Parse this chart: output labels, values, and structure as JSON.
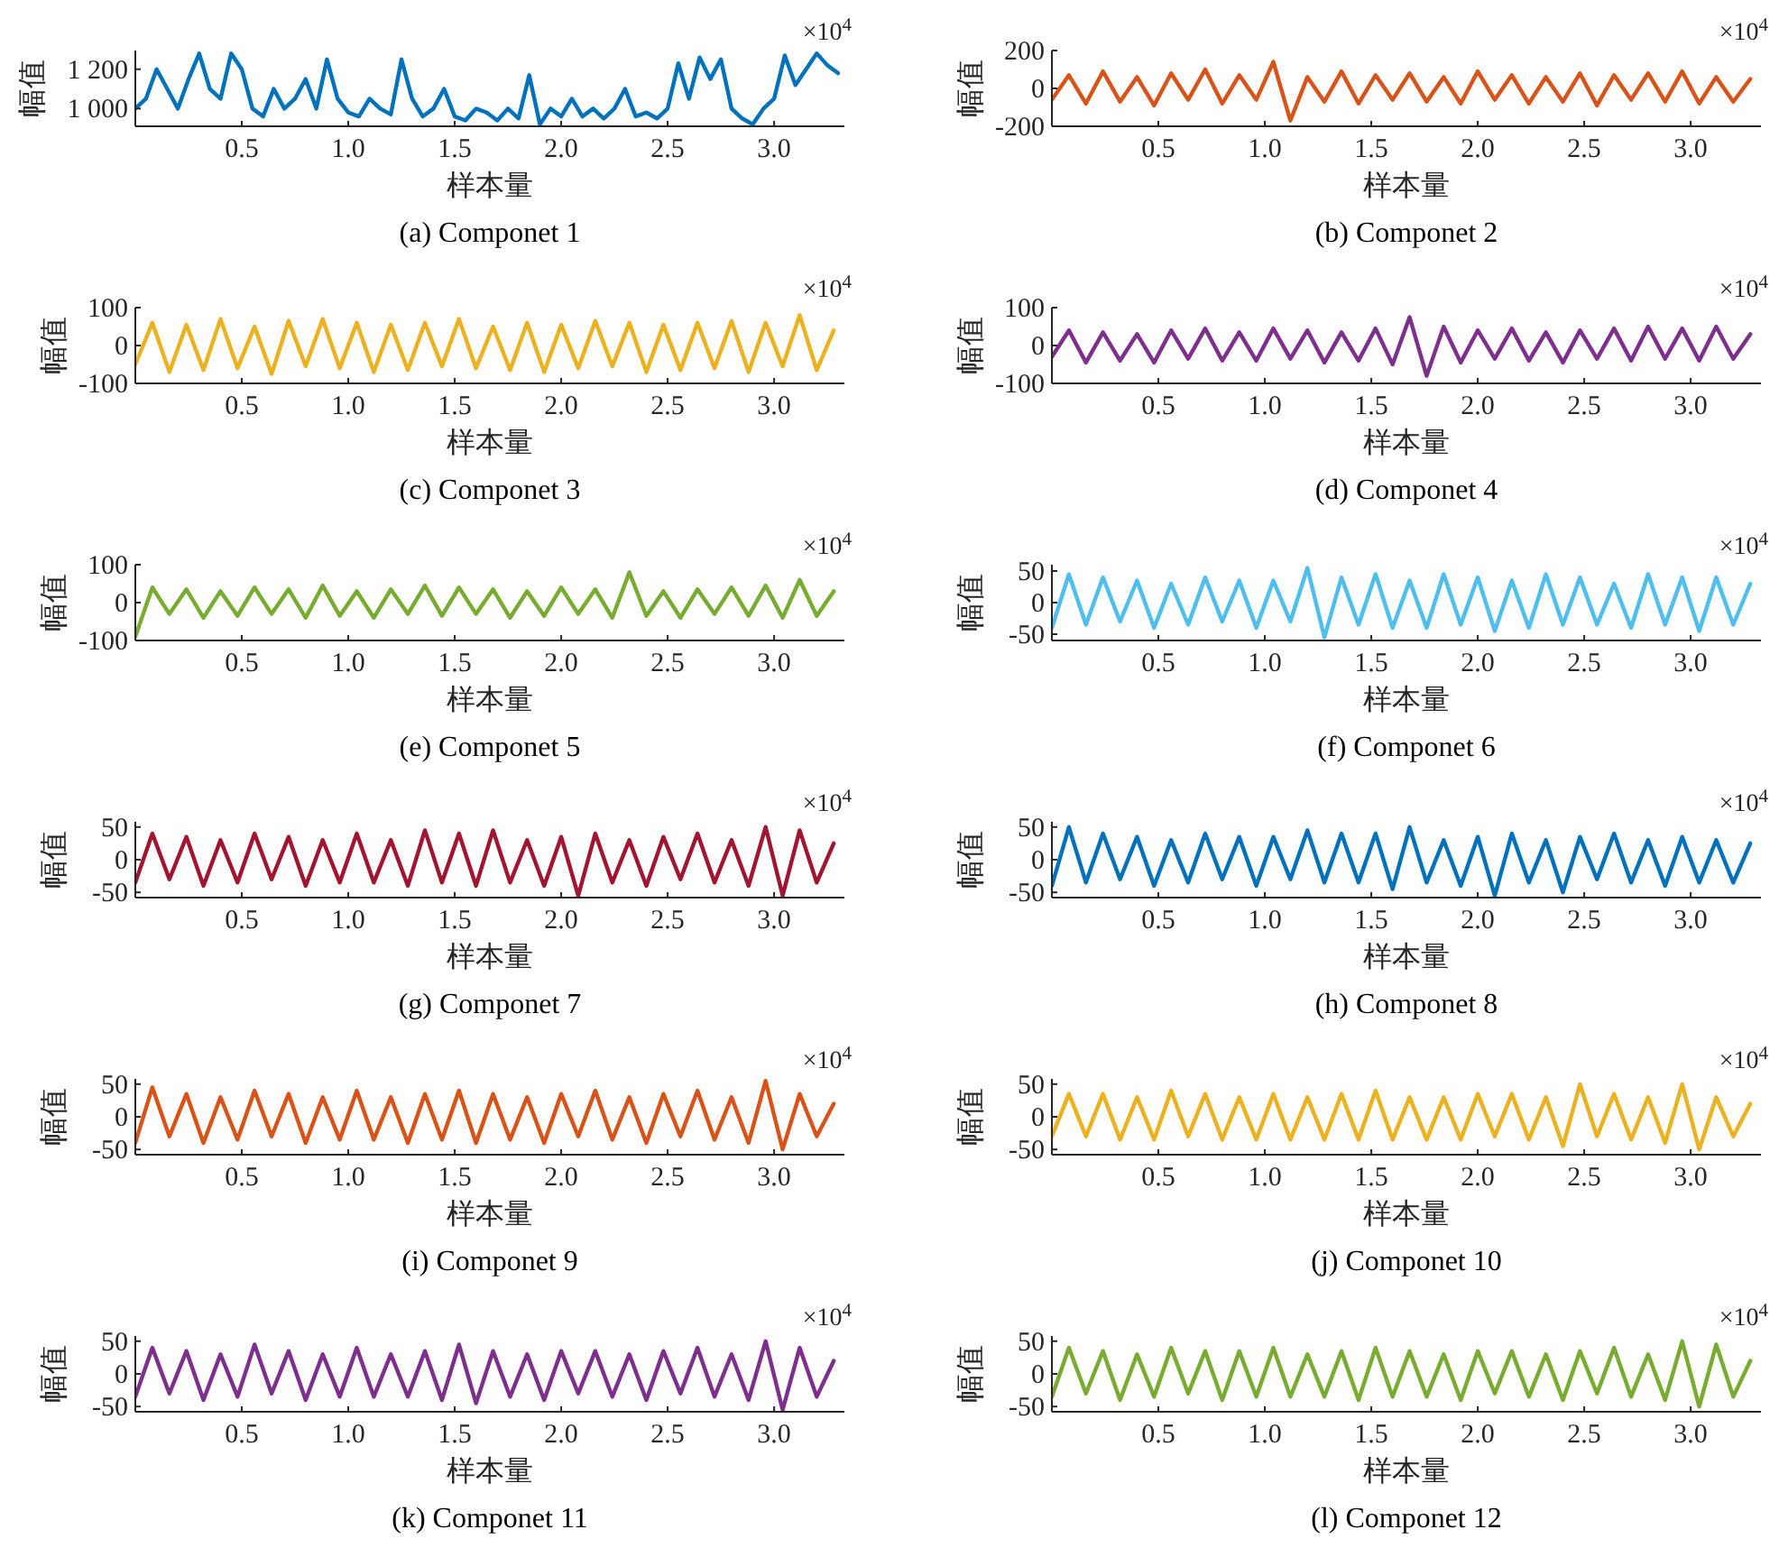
{
  "chart_data": [
    {
      "type": "line",
      "title": "(a) Componet 1",
      "xlabel": "样本量",
      "ylabel": "幅值",
      "annotations": [
        "×10$^{4}$"
      ],
      "xlim": [
        0,
        3.33
      ],
      "xticks": [
        0.5,
        {
          "value": 1,
          "label": "1.0"
        },
        1.5,
        {
          "value": 2,
          "label": "2.0"
        },
        2.5,
        {
          "value": 3,
          "label": "3.0"
        }
      ],
      "ylim": [
        910,
        1295
      ],
      "yticks": [
        {
          "value": 1000,
          "label": "1 000"
        },
        {
          "value": 1200,
          "label": "1 200"
        }
      ],
      "x": [
        0,
        0.05,
        0.1,
        0.15,
        0.2,
        0.25,
        0.3,
        0.35,
        0.4,
        0.45,
        0.5,
        0.55,
        0.6,
        0.65,
        0.7,
        0.75,
        0.8,
        0.85,
        0.9,
        0.95,
        1,
        1.05,
        1.1,
        1.15,
        1.2,
        1.25,
        1.3,
        1.35,
        1.4,
        1.45,
        1.5,
        1.55,
        1.6,
        1.65,
        1.7,
        1.75,
        1.8,
        1.85,
        1.9,
        1.95,
        2,
        2.05,
        2.1,
        2.15,
        2.2,
        2.25,
        2.3,
        2.35,
        2.4,
        2.45,
        2.5,
        2.55,
        2.6,
        2.65,
        2.7,
        2.75,
        2.8,
        2.85,
        2.9,
        2.95,
        3,
        3.05,
        3.1,
        3.15,
        3.2,
        3.25,
        3.3
      ],
      "series": [
        {
          "color": "#0072bd",
          "values": [
            1000,
            1050,
            1200,
            1100,
            1000,
            1150,
            1280,
            1100,
            1050,
            1280,
            1200,
            1000,
            960,
            1100,
            1000,
            1050,
            1150,
            1000,
            1250,
            1050,
            980,
            960,
            1050,
            1000,
            970,
            1250,
            1050,
            960,
            1000,
            1100,
            960,
            940,
            1000,
            980,
            940,
            1000,
            950,
            1170,
            920,
            1000,
            960,
            1050,
            960,
            1000,
            950,
            1000,
            1100,
            960,
            980,
            950,
            1000,
            1230,
            1050,
            1260,
            1150,
            1250,
            1000,
            950,
            920,
            1000,
            1050,
            1270,
            1120,
            1200,
            1280,
            1220,
            1180
          ]
        }
      ]
    },
    {
      "type": "line",
      "title": "(b) Componet 2",
      "xlabel": "样本量",
      "ylabel": "幅值",
      "annotations": [
        "×10$^{4}$"
      ],
      "xlim": [
        0,
        3.33
      ],
      "xticks": [
        0.5,
        {
          "value": 1,
          "label": "1.0"
        },
        1.5,
        {
          "value": 2,
          "label": "2.0"
        },
        2.5,
        {
          "value": 3,
          "label": "3.0"
        }
      ],
      "ylim": [
        -200,
        200
      ],
      "yticks": [
        -200,
        0,
        200
      ],
      "x": [
        0,
        0.08,
        0.16,
        0.24,
        0.32,
        0.4,
        0.48,
        0.56,
        0.64,
        0.72,
        0.8,
        0.88,
        0.96,
        1.04,
        1.12,
        1.2,
        1.28,
        1.36,
        1.44,
        1.52,
        1.6,
        1.68,
        1.76,
        1.84,
        1.92,
        2,
        2.08,
        2.16,
        2.24,
        2.32,
        2.4,
        2.48,
        2.56,
        2.64,
        2.72,
        2.8,
        2.88,
        2.96,
        3.04,
        3.12,
        3.2,
        3.28
      ],
      "series": [
        {
          "color": "#d95319",
          "values": [
            -60,
            70,
            -80,
            90,
            -70,
            60,
            -90,
            80,
            -60,
            100,
            -80,
            70,
            -60,
            140,
            -170,
            60,
            -70,
            90,
            -80,
            70,
            -60,
            80,
            -70,
            60,
            -80,
            90,
            -60,
            70,
            -80,
            60,
            -70,
            80,
            -90,
            70,
            -60,
            80,
            -70,
            90,
            -80,
            60,
            -70,
            50
          ]
        }
      ]
    },
    {
      "type": "line",
      "title": "(c) Componet 3",
      "xlabel": "样本量",
      "ylabel": "幅值",
      "annotations": [
        "×10$^{4}$"
      ],
      "xlim": [
        0,
        3.33
      ],
      "xticks": [
        0.5,
        {
          "value": 1,
          "label": "1.0"
        },
        1.5,
        {
          "value": 2,
          "label": "2.0"
        },
        2.5,
        {
          "value": 3,
          "label": "3.0"
        }
      ],
      "ylim": [
        -100,
        100
      ],
      "yticks": [
        -100,
        0,
        100
      ],
      "x": [
        0,
        0.08,
        0.16,
        0.24,
        0.32,
        0.4,
        0.48,
        0.56,
        0.64,
        0.72,
        0.8,
        0.88,
        0.96,
        1.04,
        1.12,
        1.2,
        1.28,
        1.36,
        1.44,
        1.52,
        1.6,
        1.68,
        1.76,
        1.84,
        1.92,
        2,
        2.08,
        2.16,
        2.24,
        2.32,
        2.4,
        2.48,
        2.56,
        2.64,
        2.72,
        2.8,
        2.88,
        2.96,
        3.04,
        3.12,
        3.2,
        3.28
      ],
      "series": [
        {
          "color": "#edb120",
          "values": [
            -50,
            60,
            -70,
            55,
            -65,
            70,
            -60,
            50,
            -75,
            65,
            -55,
            70,
            -60,
            60,
            -70,
            55,
            -65,
            60,
            -55,
            70,
            -60,
            50,
            -65,
            60,
            -70,
            55,
            -60,
            65,
            -55,
            60,
            -70,
            55,
            -65,
            60,
            -60,
            65,
            -70,
            60,
            -55,
            80,
            -65,
            40
          ]
        }
      ]
    },
    {
      "type": "line",
      "title": "(d) Componet 4",
      "xlabel": "样本量",
      "ylabel": "幅值",
      "annotations": [
        "×10$^{4}$"
      ],
      "xlim": [
        0,
        3.33
      ],
      "xticks": [
        0.5,
        {
          "value": 1,
          "label": "1.0"
        },
        1.5,
        {
          "value": 2,
          "label": "2.0"
        },
        2.5,
        {
          "value": 3,
          "label": "3.0"
        }
      ],
      "ylim": [
        -100,
        100
      ],
      "yticks": [
        -100,
        0,
        100
      ],
      "x": [
        0,
        0.08,
        0.16,
        0.24,
        0.32,
        0.4,
        0.48,
        0.56,
        0.64,
        0.72,
        0.8,
        0.88,
        0.96,
        1.04,
        1.12,
        1.2,
        1.28,
        1.36,
        1.44,
        1.52,
        1.6,
        1.68,
        1.76,
        1.84,
        1.92,
        2,
        2.08,
        2.16,
        2.24,
        2.32,
        2.4,
        2.48,
        2.56,
        2.64,
        2.72,
        2.8,
        2.88,
        2.96,
        3.04,
        3.12,
        3.2,
        3.28
      ],
      "series": [
        {
          "color": "#7e2f8e",
          "values": [
            -30,
            40,
            -45,
            35,
            -40,
            30,
            -45,
            40,
            -35,
            45,
            -40,
            35,
            -40,
            45,
            -35,
            40,
            -45,
            35,
            -40,
            45,
            -50,
            75,
            -80,
            50,
            -45,
            40,
            -35,
            45,
            -40,
            35,
            -45,
            40,
            -35,
            45,
            -40,
            50,
            -35,
            45,
            -40,
            50,
            -35,
            30
          ]
        }
      ]
    },
    {
      "type": "line",
      "title": "(e) Componet 5",
      "xlabel": "样本量",
      "ylabel": "幅值",
      "annotations": [
        "×10$^{4}$"
      ],
      "xlim": [
        0,
        3.33
      ],
      "xticks": [
        0.5,
        {
          "value": 1,
          "label": "1.0"
        },
        1.5,
        {
          "value": 2,
          "label": "2.0"
        },
        2.5,
        {
          "value": 3,
          "label": "3.0"
        }
      ],
      "ylim": [
        -100,
        100
      ],
      "yticks": [
        -100,
        0,
        100
      ],
      "x": [
        0,
        0.08,
        0.16,
        0.24,
        0.32,
        0.4,
        0.48,
        0.56,
        0.64,
        0.72,
        0.8,
        0.88,
        0.96,
        1.04,
        1.12,
        1.2,
        1.28,
        1.36,
        1.44,
        1.52,
        1.6,
        1.68,
        1.76,
        1.84,
        1.92,
        2,
        2.08,
        2.16,
        2.24,
        2.32,
        2.4,
        2.48,
        2.56,
        2.64,
        2.72,
        2.8,
        2.88,
        2.96,
        3.04,
        3.12,
        3.2,
        3.28
      ],
      "series": [
        {
          "color": "#77ac30",
          "values": [
            -90,
            40,
            -30,
            35,
            -40,
            30,
            -35,
            40,
            -30,
            35,
            -40,
            45,
            -35,
            30,
            -40,
            35,
            -30,
            45,
            -35,
            40,
            -30,
            35,
            -40,
            30,
            -35,
            40,
            -30,
            35,
            -40,
            80,
            -35,
            30,
            -40,
            35,
            -30,
            40,
            -35,
            45,
            -40,
            60,
            -35,
            30
          ]
        }
      ]
    },
    {
      "type": "line",
      "title": "(f) Componet 6",
      "xlabel": "样本量",
      "ylabel": "幅值",
      "annotations": [
        "×10$^{4}$"
      ],
      "xlim": [
        0,
        3.33
      ],
      "xticks": [
        0.5,
        {
          "value": 1,
          "label": "1.0"
        },
        1.5,
        {
          "value": 2,
          "label": "2.0"
        },
        2.5,
        {
          "value": 3,
          "label": "3.0"
        }
      ],
      "ylim": [
        -60,
        60
      ],
      "yticks": [
        -50,
        0,
        50
      ],
      "x": [
        0,
        0.08,
        0.16,
        0.24,
        0.32,
        0.4,
        0.48,
        0.56,
        0.64,
        0.72,
        0.8,
        0.88,
        0.96,
        1.04,
        1.12,
        1.2,
        1.28,
        1.36,
        1.44,
        1.52,
        1.6,
        1.68,
        1.76,
        1.84,
        1.92,
        2,
        2.08,
        2.16,
        2.24,
        2.32,
        2.4,
        2.48,
        2.56,
        2.64,
        2.72,
        2.8,
        2.88,
        2.96,
        3.04,
        3.12,
        3.2,
        3.28
      ],
      "series": [
        {
          "color": "#4dbeee",
          "values": [
            -40,
            45,
            -35,
            40,
            -30,
            35,
            -40,
            30,
            -35,
            40,
            -30,
            35,
            -40,
            35,
            -30,
            55,
            -55,
            40,
            -35,
            45,
            -40,
            35,
            -40,
            45,
            -35,
            40,
            -45,
            35,
            -40,
            45,
            -35,
            40,
            -35,
            30,
            -40,
            45,
            -35,
            40,
            -45,
            40,
            -35,
            30
          ]
        }
      ]
    },
    {
      "type": "line",
      "title": "(g) Componet 7",
      "xlabel": "样本量",
      "ylabel": "幅值",
      "annotations": [
        "×10$^{4}$"
      ],
      "xlim": [
        0,
        3.33
      ],
      "xticks": [
        0.5,
        {
          "value": 1,
          "label": "1.0"
        },
        1.5,
        {
          "value": 2,
          "label": "2.0"
        },
        2.5,
        {
          "value": 3,
          "label": "3.0"
        }
      ],
      "ylim": [
        -58,
        58
      ],
      "yticks": [
        -50,
        0,
        50
      ],
      "x": [
        0,
        0.08,
        0.16,
        0.24,
        0.32,
        0.4,
        0.48,
        0.56,
        0.64,
        0.72,
        0.8,
        0.88,
        0.96,
        1.04,
        1.12,
        1.2,
        1.28,
        1.36,
        1.44,
        1.52,
        1.6,
        1.68,
        1.76,
        1.84,
        1.92,
        2,
        2.08,
        2.16,
        2.24,
        2.32,
        2.4,
        2.48,
        2.56,
        2.64,
        2.72,
        2.8,
        2.88,
        2.96,
        3.04,
        3.12,
        3.2,
        3.28
      ],
      "series": [
        {
          "color": "#a2142f",
          "values": [
            -35,
            40,
            -30,
            35,
            -40,
            30,
            -35,
            40,
            -30,
            35,
            -40,
            30,
            -35,
            40,
            -35,
            30,
            -40,
            45,
            -35,
            40,
            -40,
            45,
            -35,
            30,
            -40,
            35,
            -55,
            40,
            -35,
            30,
            -40,
            35,
            -30,
            40,
            -35,
            30,
            -40,
            50,
            -55,
            45,
            -35,
            25
          ]
        }
      ]
    },
    {
      "type": "line",
      "title": "(h) Componet 8",
      "xlabel": "样本量",
      "ylabel": "幅值",
      "annotations": [
        "×10$^{4}$"
      ],
      "xlim": [
        0,
        3.33
      ],
      "xticks": [
        0.5,
        {
          "value": 1,
          "label": "1.0"
        },
        1.5,
        {
          "value": 2,
          "label": "2.0"
        },
        2.5,
        {
          "value": 3,
          "label": "3.0"
        }
      ],
      "ylim": [
        -58,
        58
      ],
      "yticks": [
        -50,
        0,
        50
      ],
      "x": [
        0,
        0.08,
        0.16,
        0.24,
        0.32,
        0.4,
        0.48,
        0.56,
        0.64,
        0.72,
        0.8,
        0.88,
        0.96,
        1.04,
        1.12,
        1.2,
        1.28,
        1.36,
        1.44,
        1.52,
        1.6,
        1.68,
        1.76,
        1.84,
        1.92,
        2,
        2.08,
        2.16,
        2.24,
        2.32,
        2.4,
        2.48,
        2.56,
        2.64,
        2.72,
        2.8,
        2.88,
        2.96,
        3.04,
        3.12,
        3.2,
        3.28
      ],
      "series": [
        {
          "color": "#0072bd",
          "values": [
            -40,
            50,
            -35,
            40,
            -30,
            35,
            -40,
            30,
            -35,
            40,
            -30,
            35,
            -40,
            35,
            -30,
            45,
            -35,
            40,
            -35,
            40,
            -45,
            50,
            -35,
            30,
            -40,
            35,
            -55,
            40,
            -35,
            30,
            -50,
            35,
            -30,
            40,
            -35,
            30,
            -40,
            35,
            -35,
            30,
            -35,
            25
          ]
        }
      ]
    },
    {
      "type": "line",
      "title": "(i) Componet 9",
      "xlabel": "样本量",
      "ylabel": "幅值",
      "annotations": [
        "×10$^{4}$"
      ],
      "xlim": [
        0,
        3.33
      ],
      "xticks": [
        0.5,
        {
          "value": 1,
          "label": "1.0"
        },
        1.5,
        {
          "value": 2,
          "label": "2.0"
        },
        2.5,
        {
          "value": 3,
          "label": "3.0"
        }
      ],
      "ylim": [
        -58,
        58
      ],
      "yticks": [
        -50,
        0,
        50
      ],
      "x": [
        0,
        0.08,
        0.16,
        0.24,
        0.32,
        0.4,
        0.48,
        0.56,
        0.64,
        0.72,
        0.8,
        0.88,
        0.96,
        1.04,
        1.12,
        1.2,
        1.28,
        1.36,
        1.44,
        1.52,
        1.6,
        1.68,
        1.76,
        1.84,
        1.92,
        2,
        2.08,
        2.16,
        2.24,
        2.32,
        2.4,
        2.48,
        2.56,
        2.64,
        2.72,
        2.8,
        2.88,
        2.96,
        3.04,
        3.12,
        3.2,
        3.28
      ],
      "series": [
        {
          "color": "#d95319",
          "values": [
            -40,
            45,
            -30,
            35,
            -40,
            30,
            -35,
            40,
            -30,
            35,
            -40,
            30,
            -35,
            40,
            -35,
            30,
            -40,
            35,
            -35,
            40,
            -40,
            35,
            -35,
            30,
            -40,
            35,
            -30,
            40,
            -35,
            30,
            -40,
            35,
            -30,
            40,
            -35,
            30,
            -40,
            55,
            -50,
            35,
            -30,
            20
          ]
        }
      ]
    },
    {
      "type": "line",
      "title": "(j) Componet 10",
      "xlabel": "样本量",
      "ylabel": "幅值",
      "annotations": [
        "×10$^{4}$"
      ],
      "xlim": [
        0,
        3.33
      ],
      "xticks": [
        0.5,
        {
          "value": 1,
          "label": "1.0"
        },
        1.5,
        {
          "value": 2,
          "label": "2.0"
        },
        2.5,
        {
          "value": 3,
          "label": "3.0"
        }
      ],
      "ylim": [
        -58,
        58
      ],
      "yticks": [
        -50,
        0,
        50
      ],
      "x": [
        0,
        0.08,
        0.16,
        0.24,
        0.32,
        0.4,
        0.48,
        0.56,
        0.64,
        0.72,
        0.8,
        0.88,
        0.96,
        1.04,
        1.12,
        1.2,
        1.28,
        1.36,
        1.44,
        1.52,
        1.6,
        1.68,
        1.76,
        1.84,
        1.92,
        2,
        2.08,
        2.16,
        2.24,
        2.32,
        2.4,
        2.48,
        2.56,
        2.64,
        2.72,
        2.8,
        2.88,
        2.96,
        3.04,
        3.12,
        3.2,
        3.28
      ],
      "series": [
        {
          "color": "#edb120",
          "values": [
            -30,
            35,
            -30,
            35,
            -35,
            30,
            -35,
            40,
            -30,
            35,
            -35,
            30,
            -35,
            35,
            -35,
            30,
            -35,
            35,
            -35,
            40,
            -35,
            30,
            -35,
            30,
            -35,
            35,
            -30,
            35,
            -35,
            30,
            -45,
            50,
            -30,
            35,
            -35,
            30,
            -40,
            50,
            -50,
            30,
            -30,
            20
          ]
        }
      ]
    },
    {
      "type": "line",
      "title": "(k) Componet 11",
      "xlabel": "样本量",
      "ylabel": "幅值",
      "annotations": [
        "×10$^{4}$"
      ],
      "xlim": [
        0,
        3.33
      ],
      "xticks": [
        0.5,
        {
          "value": 1,
          "label": "1.0"
        },
        1.5,
        {
          "value": 2,
          "label": "2.0"
        },
        2.5,
        {
          "value": 3,
          "label": "3.0"
        }
      ],
      "ylim": [
        -58,
        58
      ],
      "yticks": [
        -50,
        0,
        50
      ],
      "x": [
        0,
        0.08,
        0.16,
        0.24,
        0.32,
        0.4,
        0.48,
        0.56,
        0.64,
        0.72,
        0.8,
        0.88,
        0.96,
        1.04,
        1.12,
        1.2,
        1.28,
        1.36,
        1.44,
        1.52,
        1.6,
        1.68,
        1.76,
        1.84,
        1.92,
        2,
        2.08,
        2.16,
        2.24,
        2.32,
        2.4,
        2.48,
        2.56,
        2.64,
        2.72,
        2.8,
        2.88,
        2.96,
        3.04,
        3.12,
        3.2,
        3.28
      ],
      "series": [
        {
          "color": "#7e2f8e",
          "values": [
            -35,
            40,
            -30,
            35,
            -40,
            30,
            -35,
            45,
            -30,
            35,
            -40,
            30,
            -35,
            40,
            -35,
            30,
            -35,
            35,
            -40,
            45,
            -45,
            35,
            -35,
            30,
            -40,
            35,
            -30,
            35,
            -35,
            30,
            -40,
            35,
            -30,
            40,
            -35,
            30,
            -40,
            50,
            -55,
            40,
            -35,
            20
          ]
        }
      ]
    },
    {
      "type": "line",
      "title": "(l) Componet 12",
      "xlabel": "样本量",
      "ylabel": "幅值",
      "annotations": [
        "×10$^{4}$"
      ],
      "xlim": [
        0,
        3.33
      ],
      "xticks": [
        0.5,
        {
          "value": 1,
          "label": "1.0"
        },
        1.5,
        {
          "value": 2,
          "label": "2.0"
        },
        2.5,
        {
          "value": 3,
          "label": "3.0"
        }
      ],
      "ylim": [
        -58,
        58
      ],
      "yticks": [
        -50,
        0,
        50
      ],
      "x": [
        0,
        0.08,
        0.16,
        0.24,
        0.32,
        0.4,
        0.48,
        0.56,
        0.64,
        0.72,
        0.8,
        0.88,
        0.96,
        1.04,
        1.12,
        1.2,
        1.28,
        1.36,
        1.44,
        1.52,
        1.6,
        1.68,
        1.76,
        1.84,
        1.92,
        2,
        2.08,
        2.16,
        2.24,
        2.32,
        2.4,
        2.48,
        2.56,
        2.64,
        2.72,
        2.8,
        2.88,
        2.96,
        3.04,
        3.12,
        3.2,
        3.28
      ],
      "series": [
        {
          "color": "#77ac30",
          "values": [
            -35,
            40,
            -30,
            35,
            -40,
            30,
            -35,
            40,
            -30,
            35,
            -40,
            35,
            -35,
            40,
            -35,
            30,
            -35,
            35,
            -40,
            40,
            -35,
            35,
            -35,
            30,
            -40,
            35,
            -30,
            35,
            -35,
            30,
            -40,
            35,
            -30,
            40,
            -35,
            30,
            -40,
            50,
            -50,
            45,
            -35,
            20
          ]
        }
      ]
    }
  ]
}
